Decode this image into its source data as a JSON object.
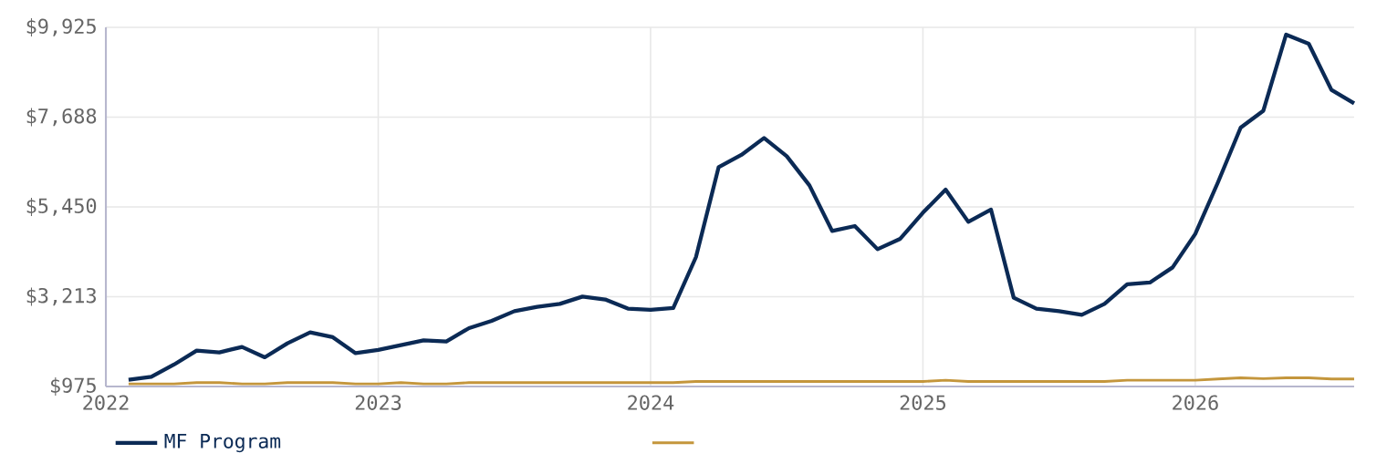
{
  "chart_data": {
    "type": "line",
    "x": [
      "2022-02",
      "2022-03",
      "2022-04",
      "2022-05",
      "2022-06",
      "2022-07",
      "2022-08",
      "2022-09",
      "2022-10",
      "2022-11",
      "2022-12",
      "2023-01",
      "2023-02",
      "2023-03",
      "2023-04",
      "2023-05",
      "2023-06",
      "2023-07",
      "2023-08",
      "2023-09",
      "2023-10",
      "2023-11",
      "2023-12",
      "2024-01",
      "2024-02",
      "2024-03",
      "2024-04",
      "2024-05",
      "2024-06",
      "2024-07",
      "2024-08",
      "2024-09",
      "2024-10",
      "2024-11",
      "2024-12",
      "2025-01",
      "2025-02",
      "2025-03",
      "2025-04",
      "2025-05",
      "2025-06",
      "2025-07",
      "2025-08",
      "2025-09",
      "2025-10",
      "2025-11",
      "2025-12",
      "2026-01",
      "2026-02",
      "2026-03",
      "2026-04",
      "2026-05",
      "2026-06",
      "2026-07",
      "2026-08"
    ],
    "series": [
      {
        "name": "MF Program",
        "color": "#0b2a55",
        "values": [
          1143,
          1216,
          1520,
          1870,
          1824,
          1961,
          1702,
          2052,
          2324,
          2202,
          1806,
          1884,
          2006,
          2124,
          2097,
          2429,
          2611,
          2851,
          2960,
          3033,
          3215,
          3142,
          2915,
          2883,
          2929,
          4200,
          6441,
          6745,
          7167,
          6713,
          5986,
          4850,
          4973,
          4396,
          4655,
          5305,
          5881,
          5077,
          5382,
          3187,
          2915,
          2851,
          2760,
          3033,
          3519,
          3565,
          3942,
          4777,
          6063,
          7426,
          7848,
          9743,
          9516,
          8366,
          8030
        ]
      },
      {
        "color": "#c4963c",
        "values": [
          1040,
          1040,
          1040,
          1070,
          1070,
          1040,
          1040,
          1070,
          1070,
          1070,
          1040,
          1040,
          1070,
          1040,
          1040,
          1070,
          1070,
          1070,
          1070,
          1070,
          1070,
          1070,
          1070,
          1070,
          1070,
          1100,
          1100,
          1100,
          1100,
          1100,
          1100,
          1100,
          1100,
          1100,
          1100,
          1100,
          1130,
          1100,
          1100,
          1100,
          1100,
          1100,
          1100,
          1100,
          1130,
          1130,
          1130,
          1130,
          1160,
          1190,
          1170,
          1190,
          1190,
          1160,
          1160
        ]
      }
    ],
    "xlim": [
      "2022-01",
      "2026-08"
    ],
    "xticks": [
      "2022",
      "2023",
      "2024",
      "2025",
      "2026"
    ],
    "ylim": [
      975,
      9925
    ],
    "yticks": [
      {
        "value": 975,
        "label": "$975"
      },
      {
        "value": 3213,
        "label": "$3,213"
      },
      {
        "value": 5450,
        "label": "$5,450"
      },
      {
        "value": 7688,
        "label": "$7,688"
      },
      {
        "value": 9925,
        "label": "$9,925"
      }
    ],
    "grid": true,
    "legend": "bottom"
  }
}
